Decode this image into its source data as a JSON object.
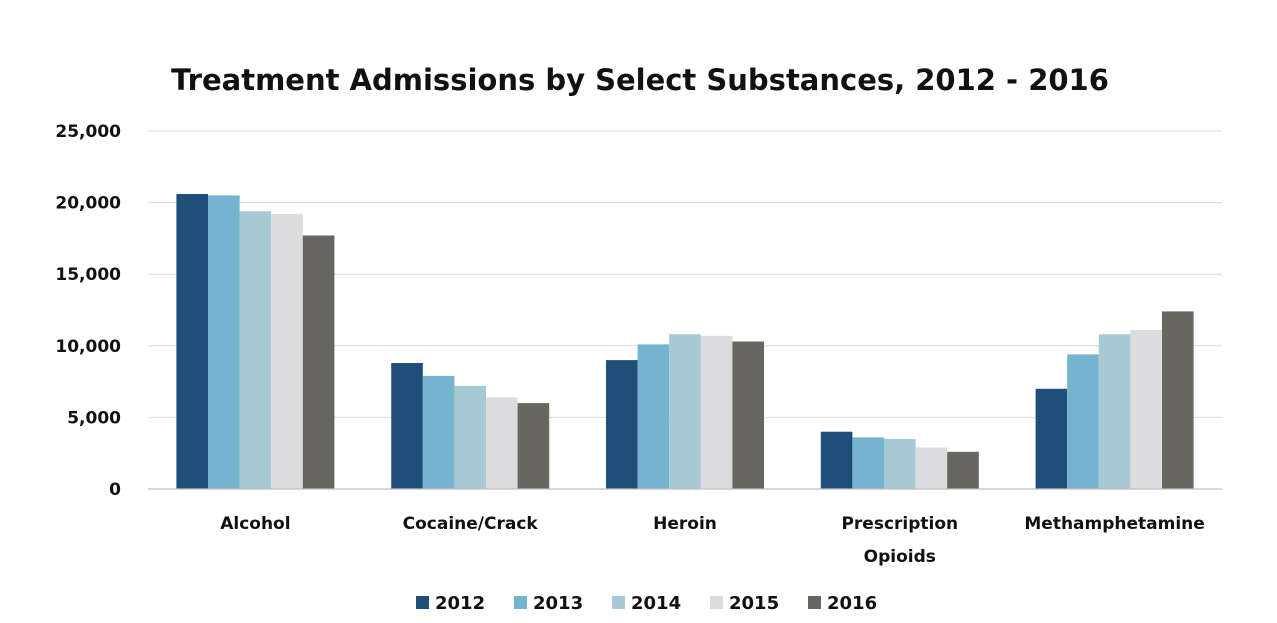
{
  "chart_data": {
    "type": "bar",
    "title": "Treatment Admissions by Select Substances, 2012 - 2016",
    "xlabel": "",
    "ylabel": "",
    "ylim": [
      0,
      25000
    ],
    "yticks": [
      0,
      5000,
      10000,
      15000,
      20000,
      25000
    ],
    "ytick_labels": [
      "0",
      "5,000",
      "10,000",
      "15,000",
      "20,000",
      "25,000"
    ],
    "grid": true,
    "legend_position": "bottom",
    "categories": [
      [
        "Alcohol"
      ],
      [
        "Cocaine/Crack"
      ],
      [
        "Heroin"
      ],
      [
        "Prescription",
        "Opioids"
      ],
      [
        "Methamphetamine"
      ]
    ],
    "series": [
      {
        "name": "2012",
        "color": "#1f4e79",
        "values": [
          20600,
          8800,
          9000,
          4000,
          7000
        ]
      },
      {
        "name": "2013",
        "color": "#76b3cf",
        "values": [
          20500,
          7900,
          10100,
          3600,
          9400
        ]
      },
      {
        "name": "2014",
        "color": "#a7c9d4",
        "values": [
          19400,
          7200,
          10800,
          3500,
          10800
        ]
      },
      {
        "name": "2015",
        "color": "#dcdcde",
        "values": [
          19200,
          6400,
          10700,
          2900,
          11100
        ]
      },
      {
        "name": "2016",
        "color": "#676760",
        "values": [
          17700,
          6000,
          10300,
          2600,
          12400
        ]
      }
    ]
  }
}
